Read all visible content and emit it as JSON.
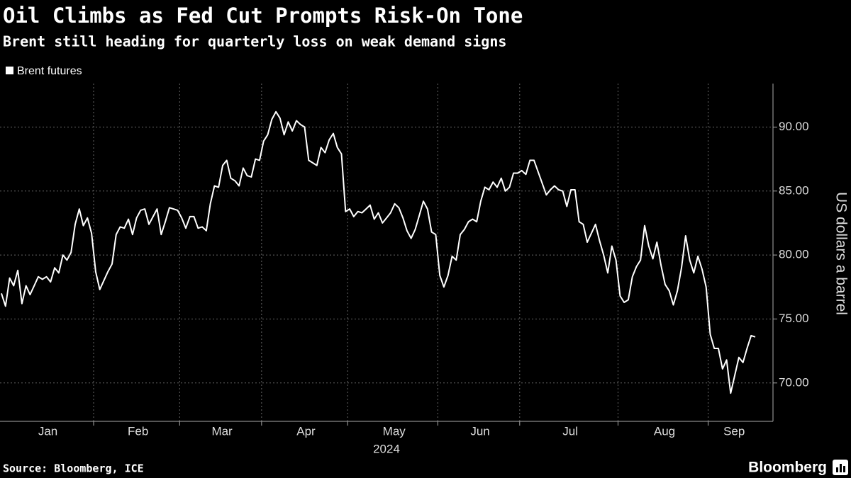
{
  "chart_data": {
    "type": "line",
    "title": "Oil Climbs as Fed Cut Prompts Risk-On Tone",
    "subtitle": "Brent still heading for quarterly loss on weak demand signs",
    "ylabel": "US dollars a barrel",
    "xlabel": "2024",
    "source": "Source: Bloomberg, ICE",
    "brand": "Bloomberg",
    "grid": true,
    "x": [
      "2024-01",
      "2024-01",
      "2024-01",
      "2024-01",
      "2024-01",
      "2024-01",
      "2024-01",
      "2024-01",
      "2024-01",
      "2024-01",
      "2024-01",
      "2024-01",
      "2024-01",
      "2024-01",
      "2024-01",
      "2024-01",
      "2024-01",
      "2024-01",
      "2024-01",
      "2024-01",
      "2024-01",
      "2024-01",
      "2024-01",
      "2024-02",
      "2024-02",
      "2024-02",
      "2024-02",
      "2024-02",
      "2024-02",
      "2024-02",
      "2024-02",
      "2024-02",
      "2024-02",
      "2024-02",
      "2024-02",
      "2024-02",
      "2024-02",
      "2024-02",
      "2024-02",
      "2024-02",
      "2024-02",
      "2024-02",
      "2024-02",
      "2024-02",
      "2024-03",
      "2024-03",
      "2024-03",
      "2024-03",
      "2024-03",
      "2024-03",
      "2024-03",
      "2024-03",
      "2024-03",
      "2024-03",
      "2024-03",
      "2024-03",
      "2024-03",
      "2024-03",
      "2024-03",
      "2024-03",
      "2024-03",
      "2024-03",
      "2024-03",
      "2024-03",
      "2024-04",
      "2024-04",
      "2024-04",
      "2024-04",
      "2024-04",
      "2024-04",
      "2024-04",
      "2024-04",
      "2024-04",
      "2024-04",
      "2024-04",
      "2024-04",
      "2024-04",
      "2024-04",
      "2024-04",
      "2024-04",
      "2024-04",
      "2024-04",
      "2024-04",
      "2024-04",
      "2024-04",
      "2024-05",
      "2024-05",
      "2024-05",
      "2024-05",
      "2024-05",
      "2024-05",
      "2024-05",
      "2024-05",
      "2024-05",
      "2024-05",
      "2024-05",
      "2024-05",
      "2024-05",
      "2024-05",
      "2024-05",
      "2024-05",
      "2024-05",
      "2024-05",
      "2024-05",
      "2024-05",
      "2024-05",
      "2024-05",
      "2024-06",
      "2024-06",
      "2024-06",
      "2024-06",
      "2024-06",
      "2024-06",
      "2024-06",
      "2024-06",
      "2024-06",
      "2024-06",
      "2024-06",
      "2024-06",
      "2024-06",
      "2024-06",
      "2024-06",
      "2024-06",
      "2024-06",
      "2024-06",
      "2024-06",
      "2024-06",
      "2024-07",
      "2024-07",
      "2024-07",
      "2024-07",
      "2024-07",
      "2024-07",
      "2024-07",
      "2024-07",
      "2024-07",
      "2024-07",
      "2024-07",
      "2024-07",
      "2024-07",
      "2024-07",
      "2024-07",
      "2024-07",
      "2024-07",
      "2024-07",
      "2024-07",
      "2024-07",
      "2024-07",
      "2024-07",
      "2024-07",
      "2024-07",
      "2024-08",
      "2024-08",
      "2024-08",
      "2024-08",
      "2024-08",
      "2024-08",
      "2024-08",
      "2024-08",
      "2024-08",
      "2024-08",
      "2024-08",
      "2024-08",
      "2024-08",
      "2024-08",
      "2024-08",
      "2024-08",
      "2024-08",
      "2024-08",
      "2024-08",
      "2024-08",
      "2024-08",
      "2024-08",
      "2024-09",
      "2024-09",
      "2024-09",
      "2024-09",
      "2024-09",
      "2024-09",
      "2024-09",
      "2024-09",
      "2024-09",
      "2024-09",
      "2024-09",
      "2024-09"
    ],
    "series": [
      {
        "name": "Brent futures",
        "color": "#ffffff",
        "values": [
          77.0,
          76.0,
          78.2,
          77.6,
          78.8,
          76.2,
          77.6,
          76.9,
          77.6,
          78.3,
          78.1,
          78.3,
          77.9,
          79.0,
          78.6,
          80.0,
          79.6,
          80.2,
          82.4,
          83.6,
          82.3,
          82.9,
          81.7,
          78.7,
          77.3,
          78.0,
          78.7,
          79.3,
          81.6,
          82.2,
          82.1,
          82.8,
          81.6,
          82.9,
          83.5,
          83.6,
          82.4,
          83.0,
          83.6,
          81.6,
          82.6,
          83.7,
          83.6,
          83.5,
          82.9,
          82.1,
          83.0,
          83.0,
          82.1,
          82.2,
          81.9,
          84.0,
          85.4,
          85.3,
          87.0,
          87.4,
          86.0,
          85.8,
          85.4,
          86.8,
          86.2,
          86.1,
          87.5,
          87.4,
          88.9,
          89.4,
          90.6,
          91.2,
          90.7,
          89.4,
          90.4,
          89.7,
          90.5,
          90.2,
          90.0,
          87.4,
          87.2,
          87.0,
          88.4,
          88.0,
          89.0,
          89.5,
          88.4,
          87.9,
          83.4,
          83.6,
          83.0,
          83.4,
          83.3,
          83.6,
          83.9,
          82.8,
          83.3,
          82.5,
          82.9,
          83.3,
          84.0,
          83.7,
          82.9,
          81.9,
          81.3,
          82.0,
          83.1,
          84.2,
          83.6,
          81.8,
          81.6,
          78.4,
          77.5,
          78.4,
          79.9,
          79.6,
          81.6,
          82.0,
          82.6,
          82.8,
          82.6,
          84.2,
          85.3,
          85.1,
          85.7,
          85.3,
          86.0,
          85.0,
          85.3,
          86.4,
          86.4,
          86.6,
          86.3,
          87.4,
          87.4,
          86.5,
          85.6,
          84.7,
          85.1,
          85.4,
          85.1,
          85.0,
          83.8,
          85.1,
          85.1,
          82.6,
          82.4,
          81.0,
          81.7,
          82.4,
          81.1,
          80.0,
          78.6,
          80.7,
          79.6,
          76.8,
          76.3,
          76.5,
          78.3,
          79.1,
          79.6,
          82.3,
          80.7,
          79.7,
          81.0,
          79.2,
          77.7,
          77.2,
          76.1,
          77.2,
          79.0,
          81.5,
          79.6,
          78.6,
          79.9,
          78.9,
          77.5,
          73.8,
          72.7,
          72.7,
          71.1,
          71.8,
          69.2,
          70.6,
          72.0,
          71.6,
          72.7,
          73.7,
          73.6
        ]
      }
    ],
    "xticks": [
      {
        "value": "2024-01",
        "label": "Jan"
      },
      {
        "value": "2024-02",
        "label": "Feb"
      },
      {
        "value": "2024-03",
        "label": "Mar"
      },
      {
        "value": "2024-04",
        "label": "Apr"
      },
      {
        "value": "2024-05",
        "label": "May"
      },
      {
        "value": "2024-06",
        "label": "Jun"
      },
      {
        "value": "2024-07",
        "label": "Jul"
      },
      {
        "value": "2024-08",
        "label": "Aug"
      },
      {
        "value": "2024-09",
        "label": "Sep"
      }
    ],
    "ylim": [
      67,
      93.4
    ],
    "yticks": [
      {
        "value": 70,
        "label": "70.00"
      },
      {
        "value": 75,
        "label": "75.00"
      },
      {
        "value": 80,
        "label": "80.00"
      },
      {
        "value": 85,
        "label": "85.00"
      },
      {
        "value": 90,
        "label": "90.00"
      }
    ]
  }
}
